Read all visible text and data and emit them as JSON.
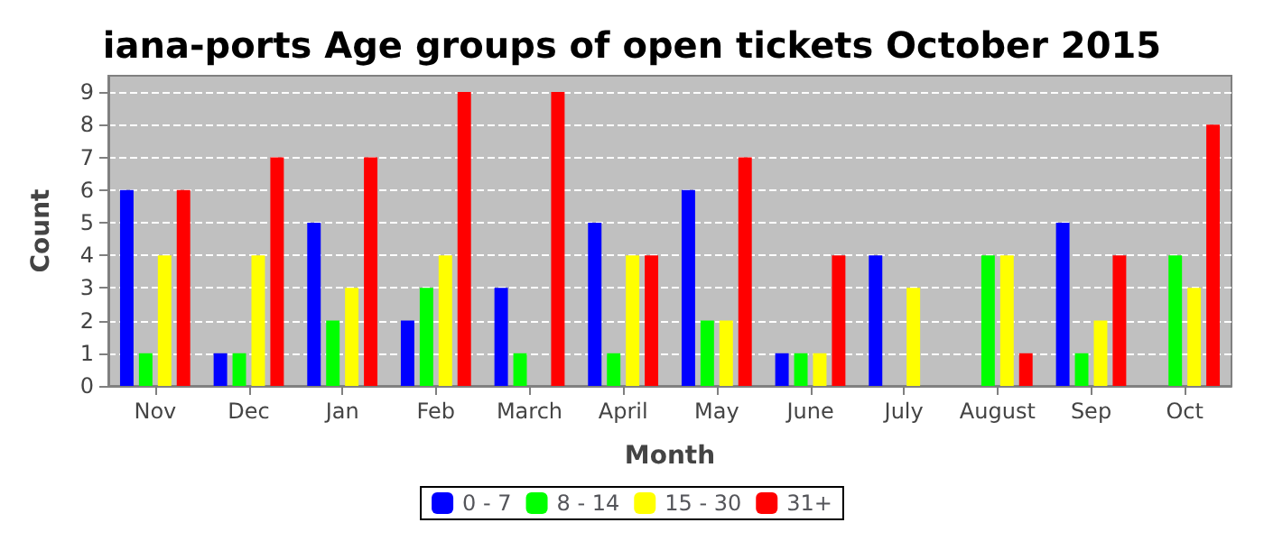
{
  "chart_data": {
    "type": "bar",
    "title": "iana-ports Age groups of open tickets October 2015",
    "xlabel": "Month",
    "ylabel": "Count",
    "categories": [
      "Nov",
      "Dec",
      "Jan",
      "Feb",
      "March",
      "April",
      "May",
      "June",
      "July",
      "August",
      "Sep",
      "Oct"
    ],
    "series": [
      {
        "name": "0 - 7",
        "color": "#0000ff",
        "values": [
          6,
          1,
          5,
          2,
          3,
          5,
          6,
          1,
          4,
          0,
          5,
          0
        ]
      },
      {
        "name": "8 - 14",
        "color": "#00ff00",
        "values": [
          1,
          1,
          2,
          3,
          1,
          1,
          2,
          1,
          0,
          4,
          1,
          4
        ]
      },
      {
        "name": "15 - 30",
        "color": "#ffff00",
        "values": [
          4,
          4,
          3,
          4,
          0,
          4,
          2,
          1,
          3,
          4,
          2,
          3
        ]
      },
      {
        "name": "31+",
        "color": "#ff0000",
        "values": [
          6,
          7,
          7,
          9,
          9,
          4,
          7,
          4,
          0,
          1,
          4,
          8
        ]
      }
    ],
    "ylim": [
      0,
      9.5
    ],
    "yticks": [
      0,
      1,
      2,
      3,
      4,
      5,
      6,
      7,
      8,
      9
    ],
    "grid": "y",
    "legend": "bottom"
  }
}
